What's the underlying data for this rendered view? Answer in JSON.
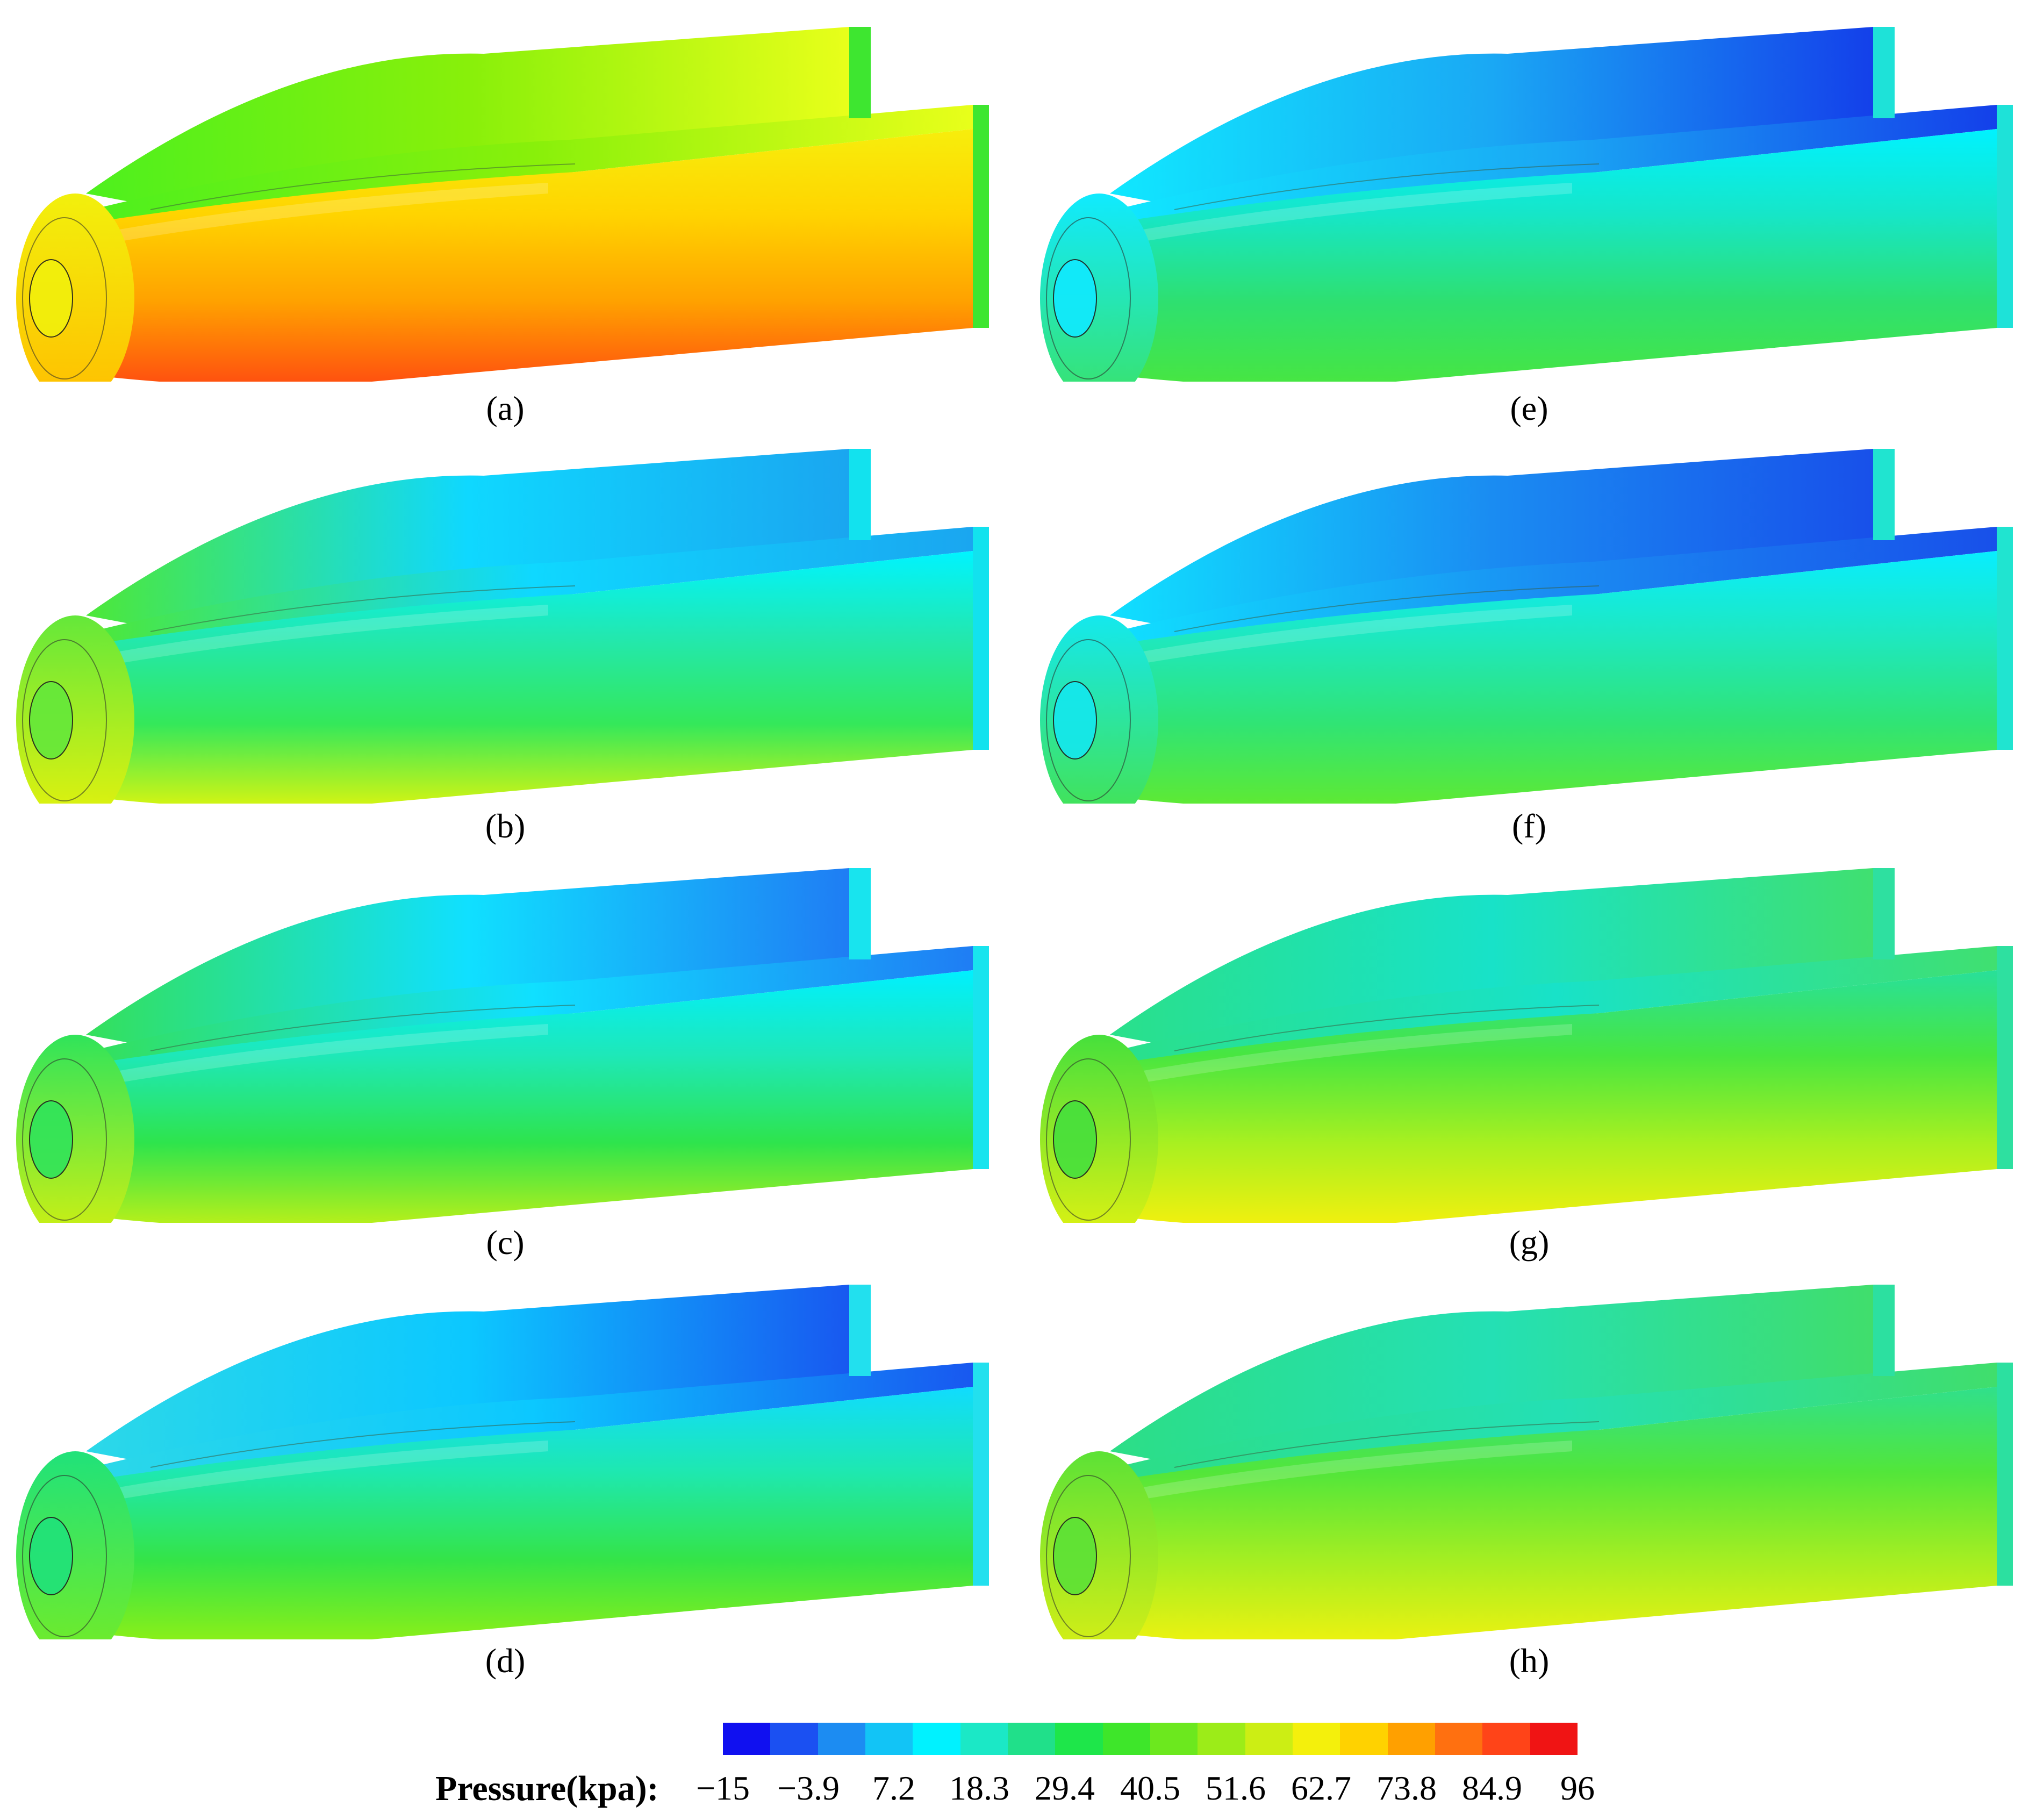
{
  "panels": [
    {
      "id": "a",
      "label": "(a)",
      "colors": {
        "side": [
          "#f7ee0c",
          "#ffd400",
          "#ffa100",
          "#ff4d10"
        ],
        "top": [
          "#4df01e",
          "#88f00a",
          "#e8ff1a"
        ],
        "throat": [
          "#f2f00c",
          "#ffbf00"
        ],
        "end": "#3ee630"
      }
    },
    {
      "id": "b",
      "label": "(b)",
      "colors": {
        "side": [
          "#00f4ff",
          "#22e8b0",
          "#34e85a",
          "#d9f510"
        ],
        "top": [
          "#4de838",
          "#0fd8ff",
          "#1aa6f0"
        ],
        "throat": [
          "#64e83a",
          "#e6f20c"
        ],
        "end": "#12e2ee"
      }
    },
    {
      "id": "c",
      "label": "(c)",
      "colors": {
        "side": [
          "#00f0ff",
          "#1ee8b8",
          "#2ee44c",
          "#bdf018"
        ],
        "top": [
          "#34e05a",
          "#10e0ff",
          "#1f7df4"
        ],
        "throat": [
          "#30e45a",
          "#d4f010"
        ],
        "end": "#18e4ee"
      }
    },
    {
      "id": "d",
      "label": "(d)",
      "colors": {
        "side": [
          "#10dcff",
          "#1ee8b0",
          "#34e448",
          "#8ef016"
        ],
        "top": [
          "#2cd8e8",
          "#0cc8ff",
          "#1858f0"
        ],
        "throat": [
          "#20e27a",
          "#74ec26"
        ],
        "end": "#22e0ee"
      }
    },
    {
      "id": "e",
      "label": "(e)",
      "colors": {
        "side": [
          "#00f2ff",
          "#16e6c8",
          "#2ee070",
          "#48e640"
        ],
        "top": [
          "#10e8ff",
          "#1aa8f4",
          "#1440ea"
        ],
        "throat": [
          "#10eaff",
          "#3ae26a"
        ],
        "end": "#1ee2d8"
      }
    },
    {
      "id": "f",
      "label": "(f)",
      "colors": {
        "side": [
          "#08eeff",
          "#1ee8c0",
          "#30e474",
          "#60ea30"
        ],
        "top": [
          "#10e0ff",
          "#1a8cf2",
          "#1850ea"
        ],
        "throat": [
          "#14e8ee",
          "#46e24c"
        ],
        "end": "#20e4d0"
      }
    },
    {
      "id": "g",
      "label": "(g)",
      "colors": {
        "side": [
          "#28e09a",
          "#48e640",
          "#a8f020",
          "#f4f00e"
        ],
        "top": [
          "#2ae08a",
          "#18e2c8",
          "#40e070"
        ],
        "throat": [
          "#46e03c",
          "#e4f210"
        ],
        "end": "#2ee0a0"
      }
    },
    {
      "id": "h",
      "label": "(h)",
      "colors": {
        "side": [
          "#30e08c",
          "#52e63a",
          "#a4ee22",
          "#eef210"
        ],
        "top": [
          "#2cde86",
          "#24e0b4",
          "#40de6c"
        ],
        "throat": [
          "#5ce236",
          "#dcef14"
        ],
        "end": "#2ce0a0"
      }
    }
  ],
  "colorbar": {
    "title": "Pressure(kpa):",
    "ticks": [
      "−15",
      "−3.9",
      "7.2",
      "18.3",
      "29.4",
      "40.5",
      "51.6",
      "62.7",
      "73.8",
      "84.9",
      "96"
    ],
    "colors": [
      "#1010f0",
      "#1b50f2",
      "#1c8cf2",
      "#12c4f6",
      "#00f2ff",
      "#1be8c6",
      "#20e08a",
      "#1ee64a",
      "#3ee62a",
      "#6ce81e",
      "#9cec18",
      "#ccee14",
      "#f4f00c",
      "#ffd200",
      "#ffa000",
      "#ff7010",
      "#ff4418",
      "#f01414"
    ],
    "range": [
      -15,
      96
    ]
  }
}
